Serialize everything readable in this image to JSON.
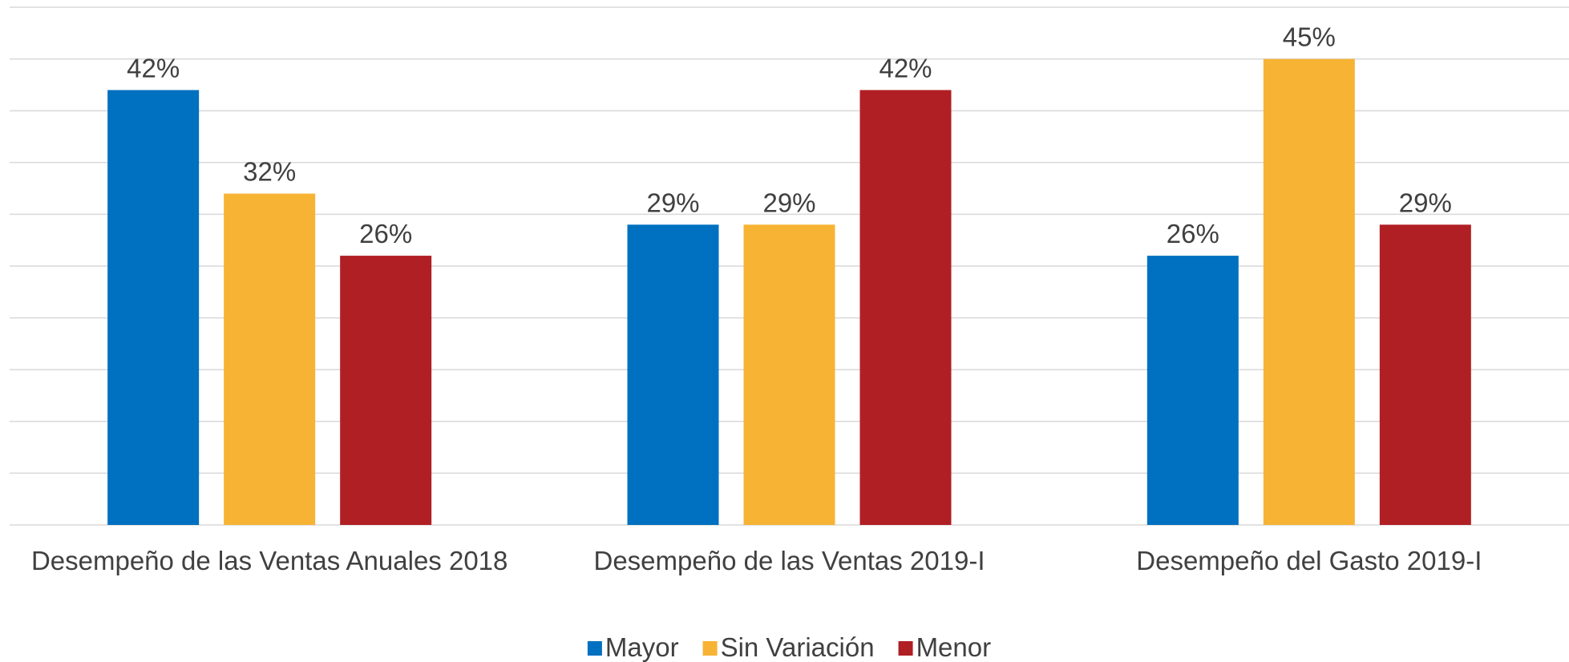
{
  "chart_data": {
    "type": "bar",
    "categories": [
      "Desempeño de las Ventas Anuales 2018",
      "Desempeño de las Ventas 2019-I",
      "Desempeño del Gasto 2019-I"
    ],
    "series": [
      {
        "name": "Mayor",
        "color": "#0070c0",
        "values": [
          42,
          29,
          26
        ],
        "value_labels": [
          "42%",
          "29%",
          "26%"
        ]
      },
      {
        "name": "Sin Variación",
        "color": "#f7b334",
        "values": [
          32,
          29,
          45
        ],
        "value_labels": [
          "32%",
          "29%",
          "45%"
        ]
      },
      {
        "name": "Menor",
        "color": "#b01f24",
        "values": [
          26,
          42,
          29
        ],
        "value_labels": [
          "26%",
          "42%",
          "29%"
        ]
      }
    ],
    "ylim": [
      0,
      50
    ],
    "yticks": [
      0,
      5,
      10,
      15,
      20,
      25,
      30,
      35,
      40,
      45,
      50
    ],
    "grid": true,
    "legend": "bottom"
  }
}
